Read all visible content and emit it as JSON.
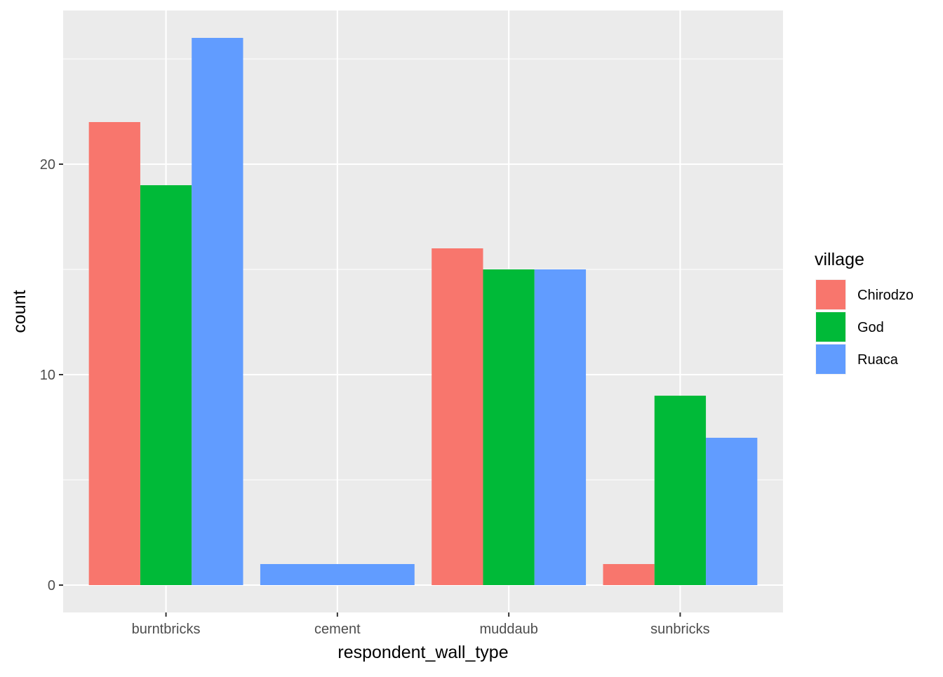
{
  "chart_data": {
    "type": "bar",
    "position": "dodge",
    "categories": [
      "burntbricks",
      "cement",
      "muddaub",
      "sunbricks"
    ],
    "series": [
      {
        "name": "Chirodzo",
        "color": "#F8766D",
        "values": [
          22,
          null,
          16,
          1
        ]
      },
      {
        "name": "God",
        "color": "#00BA38",
        "values": [
          19,
          null,
          15,
          9
        ]
      },
      {
        "name": "Ruaca",
        "color": "#619CFF",
        "values": [
          26,
          1,
          15,
          7
        ]
      }
    ],
    "xlabel": "respondent_wall_type",
    "ylabel": "count",
    "ylim": [
      -1.3,
      27.3
    ],
    "yticks": [
      0,
      10,
      20
    ],
    "grid": true,
    "panel_background": "#EBEBEB",
    "legend": {
      "title": "village",
      "placement": "right"
    }
  }
}
